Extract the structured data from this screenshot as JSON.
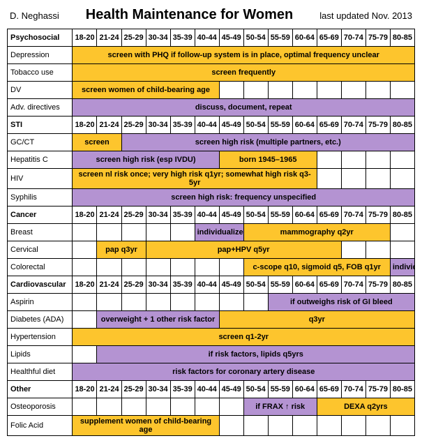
{
  "header": {
    "author": "D. Neghassi",
    "title": "Health Maintenance for Women",
    "updated": "last updated Nov. 2013"
  },
  "ages": [
    "18-20",
    "21-24",
    "25-29",
    "30-34",
    "35-39",
    "40-44",
    "45-49",
    "50-54",
    "55-59",
    "60-64",
    "65-69",
    "70-74",
    "75-79",
    "80-85"
  ],
  "colors": {
    "yellow": "#fdc52d",
    "purple": "#b493d2"
  },
  "sections": {
    "psychosocial": "Psychosocial",
    "sti": "STI",
    "cancer": "Cancer",
    "cardio": "Cardiovascular",
    "other": "Other"
  },
  "rows": {
    "depression": {
      "label": "Depression",
      "bars": [
        {
          "span": 14,
          "cls": "yellow",
          "text": "screen with PHQ if follow-up system is in place, optimal frequency unclear"
        }
      ]
    },
    "tobacco": {
      "label": "Tobacco use",
      "bars": [
        {
          "span": 14,
          "cls": "yellow",
          "text": "screen frequently"
        }
      ]
    },
    "dv": {
      "label": "DV",
      "bars": [
        {
          "span": 6,
          "cls": "yellow",
          "text": "screen women of child-bearing age"
        },
        {
          "span": 8,
          "cls": "blank",
          "text": ""
        }
      ]
    },
    "advdir": {
      "label": "Adv. directives",
      "bars": [
        {
          "span": 14,
          "cls": "purple",
          "text": "discuss, document, repeat"
        }
      ]
    },
    "gcct": {
      "label": "GC/CT",
      "bars": [
        {
          "span": 2,
          "cls": "yellow",
          "text": "screen"
        },
        {
          "span": 12,
          "cls": "purple",
          "text": "screen high risk (multiple partners, etc.)"
        }
      ]
    },
    "hepc": {
      "label": "Hepatitis C",
      "bars": [
        {
          "span": 6,
          "cls": "purple",
          "text": "screen high risk (esp IVDU)"
        },
        {
          "span": 4,
          "cls": "yellow",
          "text": "born 1945–1965"
        },
        {
          "span": 4,
          "cls": "blank",
          "text": ""
        }
      ]
    },
    "hiv": {
      "label": "HIV",
      "bars": [
        {
          "span": 10,
          "cls": "yellow",
          "text": "screen nl risk once; very high risk q1yr; somewhat high risk q3-5yr"
        },
        {
          "span": 4,
          "cls": "blank",
          "text": ""
        }
      ]
    },
    "syphilis": {
      "label": "Syphilis",
      "bars": [
        {
          "span": 14,
          "cls": "purple",
          "text": "screen high risk: frequency unspecified"
        }
      ]
    },
    "breast": {
      "label": "Breast",
      "bars": [
        {
          "span": 5,
          "cls": "blank",
          "text": ""
        },
        {
          "span": 2,
          "cls": "purple",
          "text": "individualize"
        },
        {
          "span": 6,
          "cls": "yellow",
          "text": "mammography q2yr"
        },
        {
          "span": 1,
          "cls": "blank",
          "text": ""
        }
      ]
    },
    "cervical": {
      "label": "Cervical",
      "bars": [
        {
          "span": 1,
          "cls": "blank",
          "text": ""
        },
        {
          "span": 2,
          "cls": "yellow",
          "text": "pap q3yr"
        },
        {
          "span": 8,
          "cls": "yellow",
          "text": "pap+HPV q5yr"
        },
        {
          "span": 3,
          "cls": "blank",
          "text": ""
        }
      ]
    },
    "colorectal": {
      "label": "Colorectal",
      "bars": [
        {
          "span": 7,
          "cls": "blank",
          "text": ""
        },
        {
          "span": 6,
          "cls": "yellow",
          "text": "c-scope q10, sigmoid q5, FOB q1yr"
        },
        {
          "span": 1,
          "cls": "purple",
          "text": "individualize"
        }
      ]
    },
    "aspirin": {
      "label": "Aspirin",
      "bars": [
        {
          "span": 8,
          "cls": "blank",
          "text": ""
        },
        {
          "span": 6,
          "cls": "purple",
          "text": "if outweighs risk of GI bleed"
        }
      ]
    },
    "diabetes": {
      "label": "Diabetes (ADA)",
      "bars": [
        {
          "span": 1,
          "cls": "blank",
          "text": ""
        },
        {
          "span": 5,
          "cls": "purple",
          "text": "overweight + 1 other risk factor"
        },
        {
          "span": 8,
          "cls": "yellow",
          "text": "q3yr"
        }
      ]
    },
    "htn": {
      "label": "Hypertension",
      "bars": [
        {
          "span": 14,
          "cls": "yellow",
          "text": "screen q1-2yr"
        }
      ]
    },
    "lipids": {
      "label": "Lipids",
      "bars": [
        {
          "span": 1,
          "cls": "blank",
          "text": ""
        },
        {
          "span": 13,
          "cls": "purple",
          "text": "if risk factors, lipids q5yrs"
        }
      ]
    },
    "diet": {
      "label": "Healthful diet",
      "bars": [
        {
          "span": 14,
          "cls": "purple",
          "text": "risk factors for coronary artery disease"
        }
      ]
    },
    "osteo": {
      "label": "Osteoporosis",
      "bars": [
        {
          "span": 7,
          "cls": "blank",
          "text": ""
        },
        {
          "span": 3,
          "cls": "purple",
          "text": "if FRAX ↑ risk"
        },
        {
          "span": 4,
          "cls": "yellow",
          "text": "DEXA q2yrs"
        }
      ]
    },
    "folic": {
      "label": "Folic Acid",
      "bars": [
        {
          "span": 6,
          "cls": "yellow",
          "text": "supplement women of child-bearing age"
        },
        {
          "span": 8,
          "cls": "blank",
          "text": ""
        }
      ]
    }
  }
}
